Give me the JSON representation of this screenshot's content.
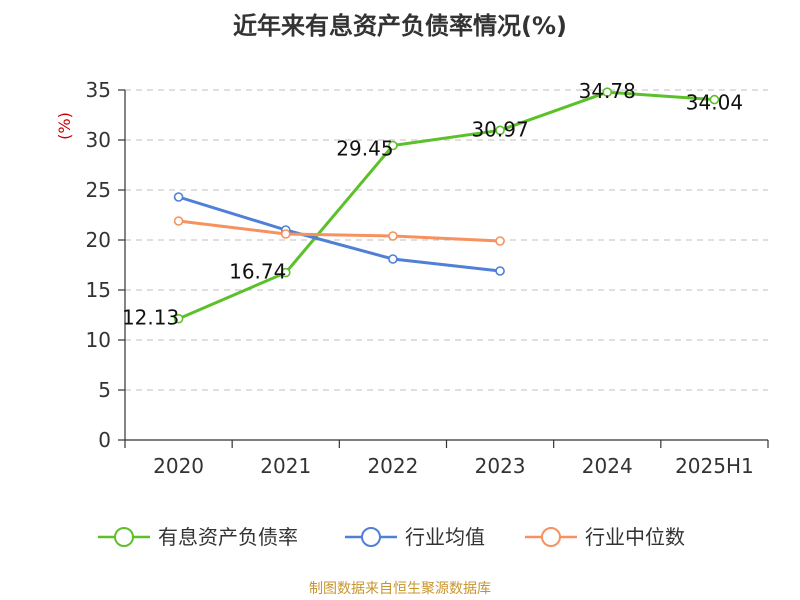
{
  "title": "近年来有息资产负债率情况(%)",
  "source": "制图数据来自恒生聚源数据库",
  "colors": {
    "debt_ratio": "#5cc02a",
    "industry_mean": "#4f7fd6",
    "industry_median": "#f7925e",
    "grid": "#cccccc",
    "axis": "#333333",
    "ylabel": "#cc0000"
  },
  "chart_data": {
    "type": "line",
    "categories": [
      "2020",
      "2021",
      "2022",
      "2023",
      "2024",
      "2025H1"
    ],
    "ylabel": "(%)",
    "xlabel": "",
    "ylim": [
      0,
      35
    ],
    "yticks": [
      0,
      5,
      10,
      15,
      20,
      25,
      30,
      35
    ],
    "grid": true,
    "legend_position": "bottom",
    "series": [
      {
        "name": "有息资产负债率",
        "color_key": "debt_ratio",
        "values": [
          12.13,
          16.74,
          29.45,
          30.97,
          34.78,
          34.04
        ],
        "labels": [
          "12.13",
          "16.74",
          "29.45",
          "30.97",
          "34.78",
          "34.04"
        ]
      },
      {
        "name": "行业均值",
        "color_key": "industry_mean",
        "values": [
          24.3,
          21.0,
          18.1,
          16.9,
          null,
          null
        ],
        "labels": []
      },
      {
        "name": "行业中位数",
        "color_key": "industry_median",
        "values": [
          21.9,
          20.6,
          20.4,
          19.9,
          null,
          null
        ],
        "labels": []
      }
    ]
  }
}
